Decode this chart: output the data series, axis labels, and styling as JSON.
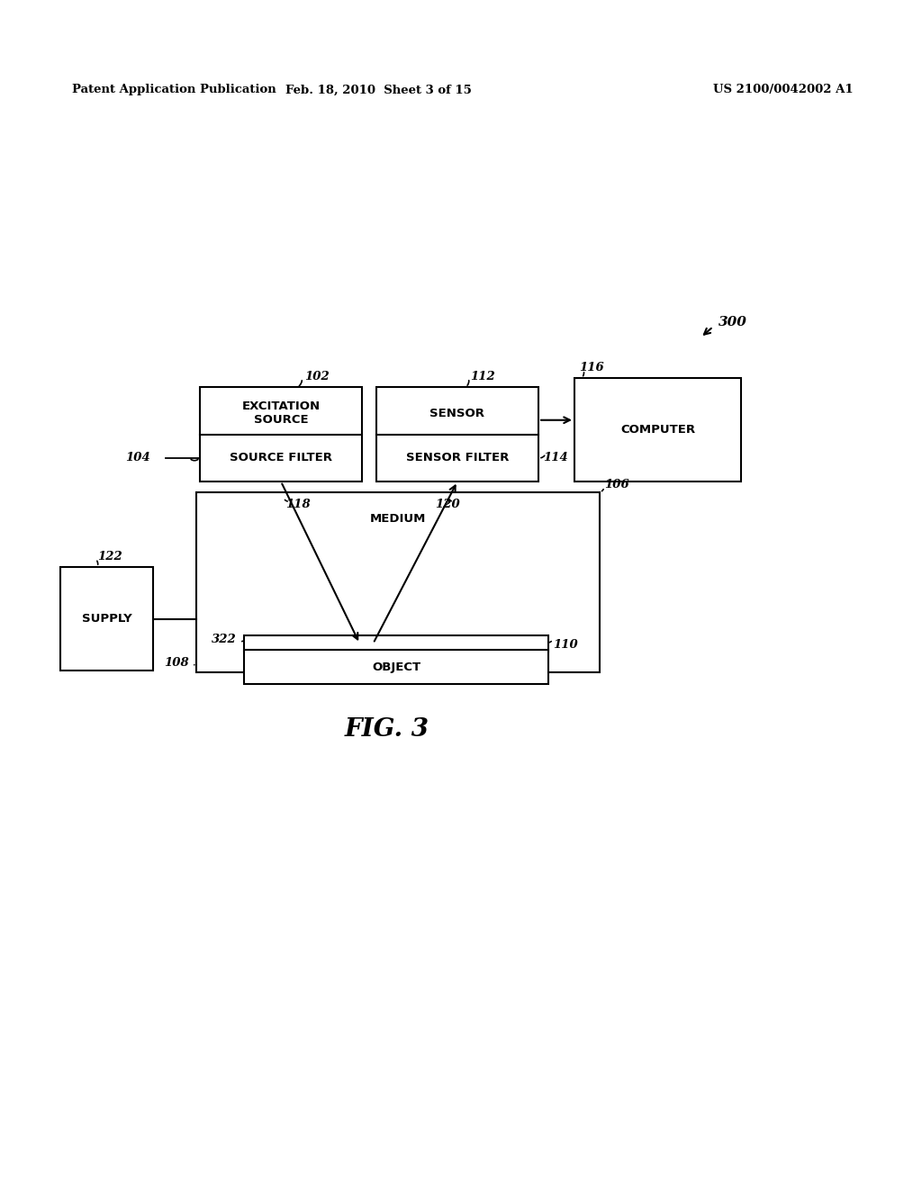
{
  "background_color": "#ffffff",
  "header_left": "Patent Application Publication",
  "header_center": "Feb. 18, 2010  Sheet 3 of 15",
  "header_right": "US 2100/0042002 A1",
  "fig_label": "FIG. 3"
}
